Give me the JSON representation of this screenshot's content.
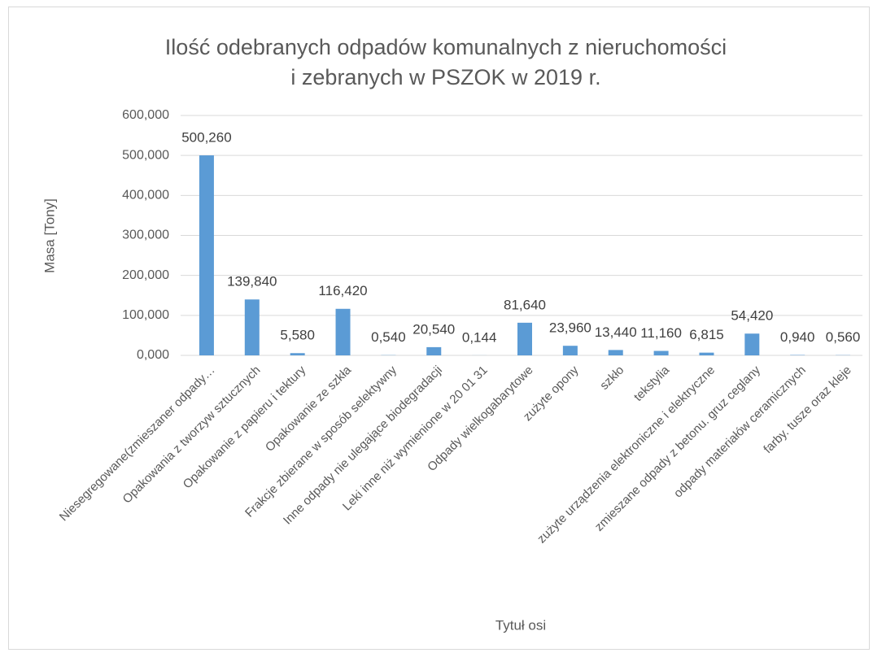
{
  "chart_data": {
    "type": "bar",
    "title": [
      "Ilość odebranych  odpadów komunalnych  z nieruchomości",
      "i zebranych  w PSZOK w 2019 r."
    ],
    "x_label": "Tytuł osi",
    "y_label": "Masa [Tony]",
    "categories": [
      "Niesegregowane(zmieszaner odpady…",
      "Opakowania z tworzyw sztucznych",
      "Opakowanie z papieru i tektury",
      "Opakowanie ze szkła",
      "Frakcje zbierane w sposób selektywny",
      "Inne odpady nie ulegające biodegradacji",
      "Leki inne niż wymienione w 20 01 31",
      "Odpady wielkogabarytowe",
      "zużyte opony",
      "szkło",
      "tekstylia",
      "zużyte urządzenia elektroniczne i elektryczne",
      "zmieszane odpady z betonu. gruz ceglany",
      "odpady materiałów ceramicznych",
      "farby. tusze oraz kleje"
    ],
    "values": [
      500.26,
      139.84,
      5.58,
      116.42,
      0.54,
      20.54,
      0.144,
      81.64,
      23.96,
      13.44,
      11.16,
      6.815,
      54.42,
      0.94,
      0.56
    ],
    "value_labels": [
      "500,260",
      "139,840",
      "5,580",
      "116,420",
      "0,540",
      "20,540",
      "0,144",
      "81,640",
      "23,960",
      "13,440",
      "11,160",
      "6,815",
      "54,420",
      "0,940",
      "0,560"
    ],
    "color": "#5b9bd5",
    "ylim": [
      0,
      600
    ],
    "yticks": [
      {
        "value": 0,
        "label": "0,000"
      },
      {
        "value": 100,
        "label": "100,000"
      },
      {
        "value": 200,
        "label": "200,000"
      },
      {
        "value": 300,
        "label": "300,000"
      },
      {
        "value": 400,
        "label": "400,000"
      },
      {
        "value": 500,
        "label": "500,000"
      },
      {
        "value": 600,
        "label": "600,000"
      }
    ],
    "grid": true
  }
}
